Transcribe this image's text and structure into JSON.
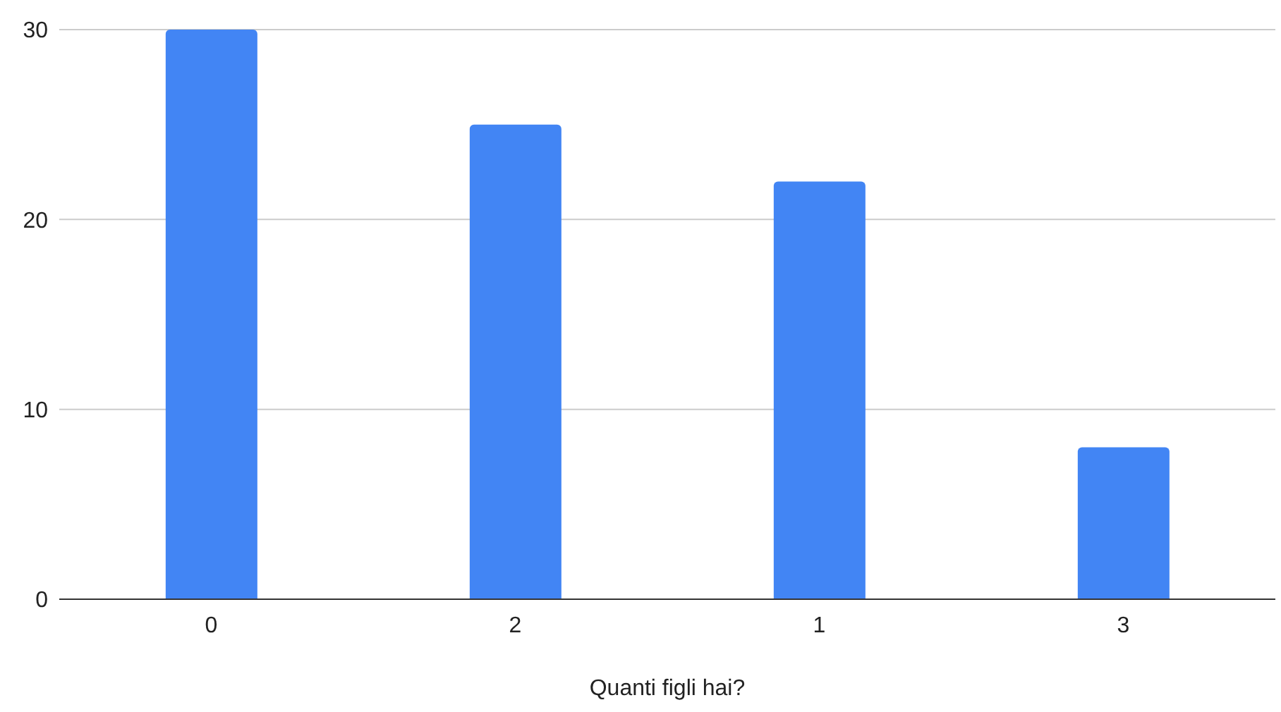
{
  "chart_data": {
    "type": "bar",
    "xlabel": "Quanti figli hai?",
    "categories": [
      "0",
      "2",
      "1",
      "3"
    ],
    "values": [
      30,
      25,
      22,
      8
    ],
    "color": "#4285f4",
    "ylim": [
      0,
      30
    ],
    "yticks": [
      0,
      10,
      20,
      30
    ],
    "grid": "y"
  }
}
